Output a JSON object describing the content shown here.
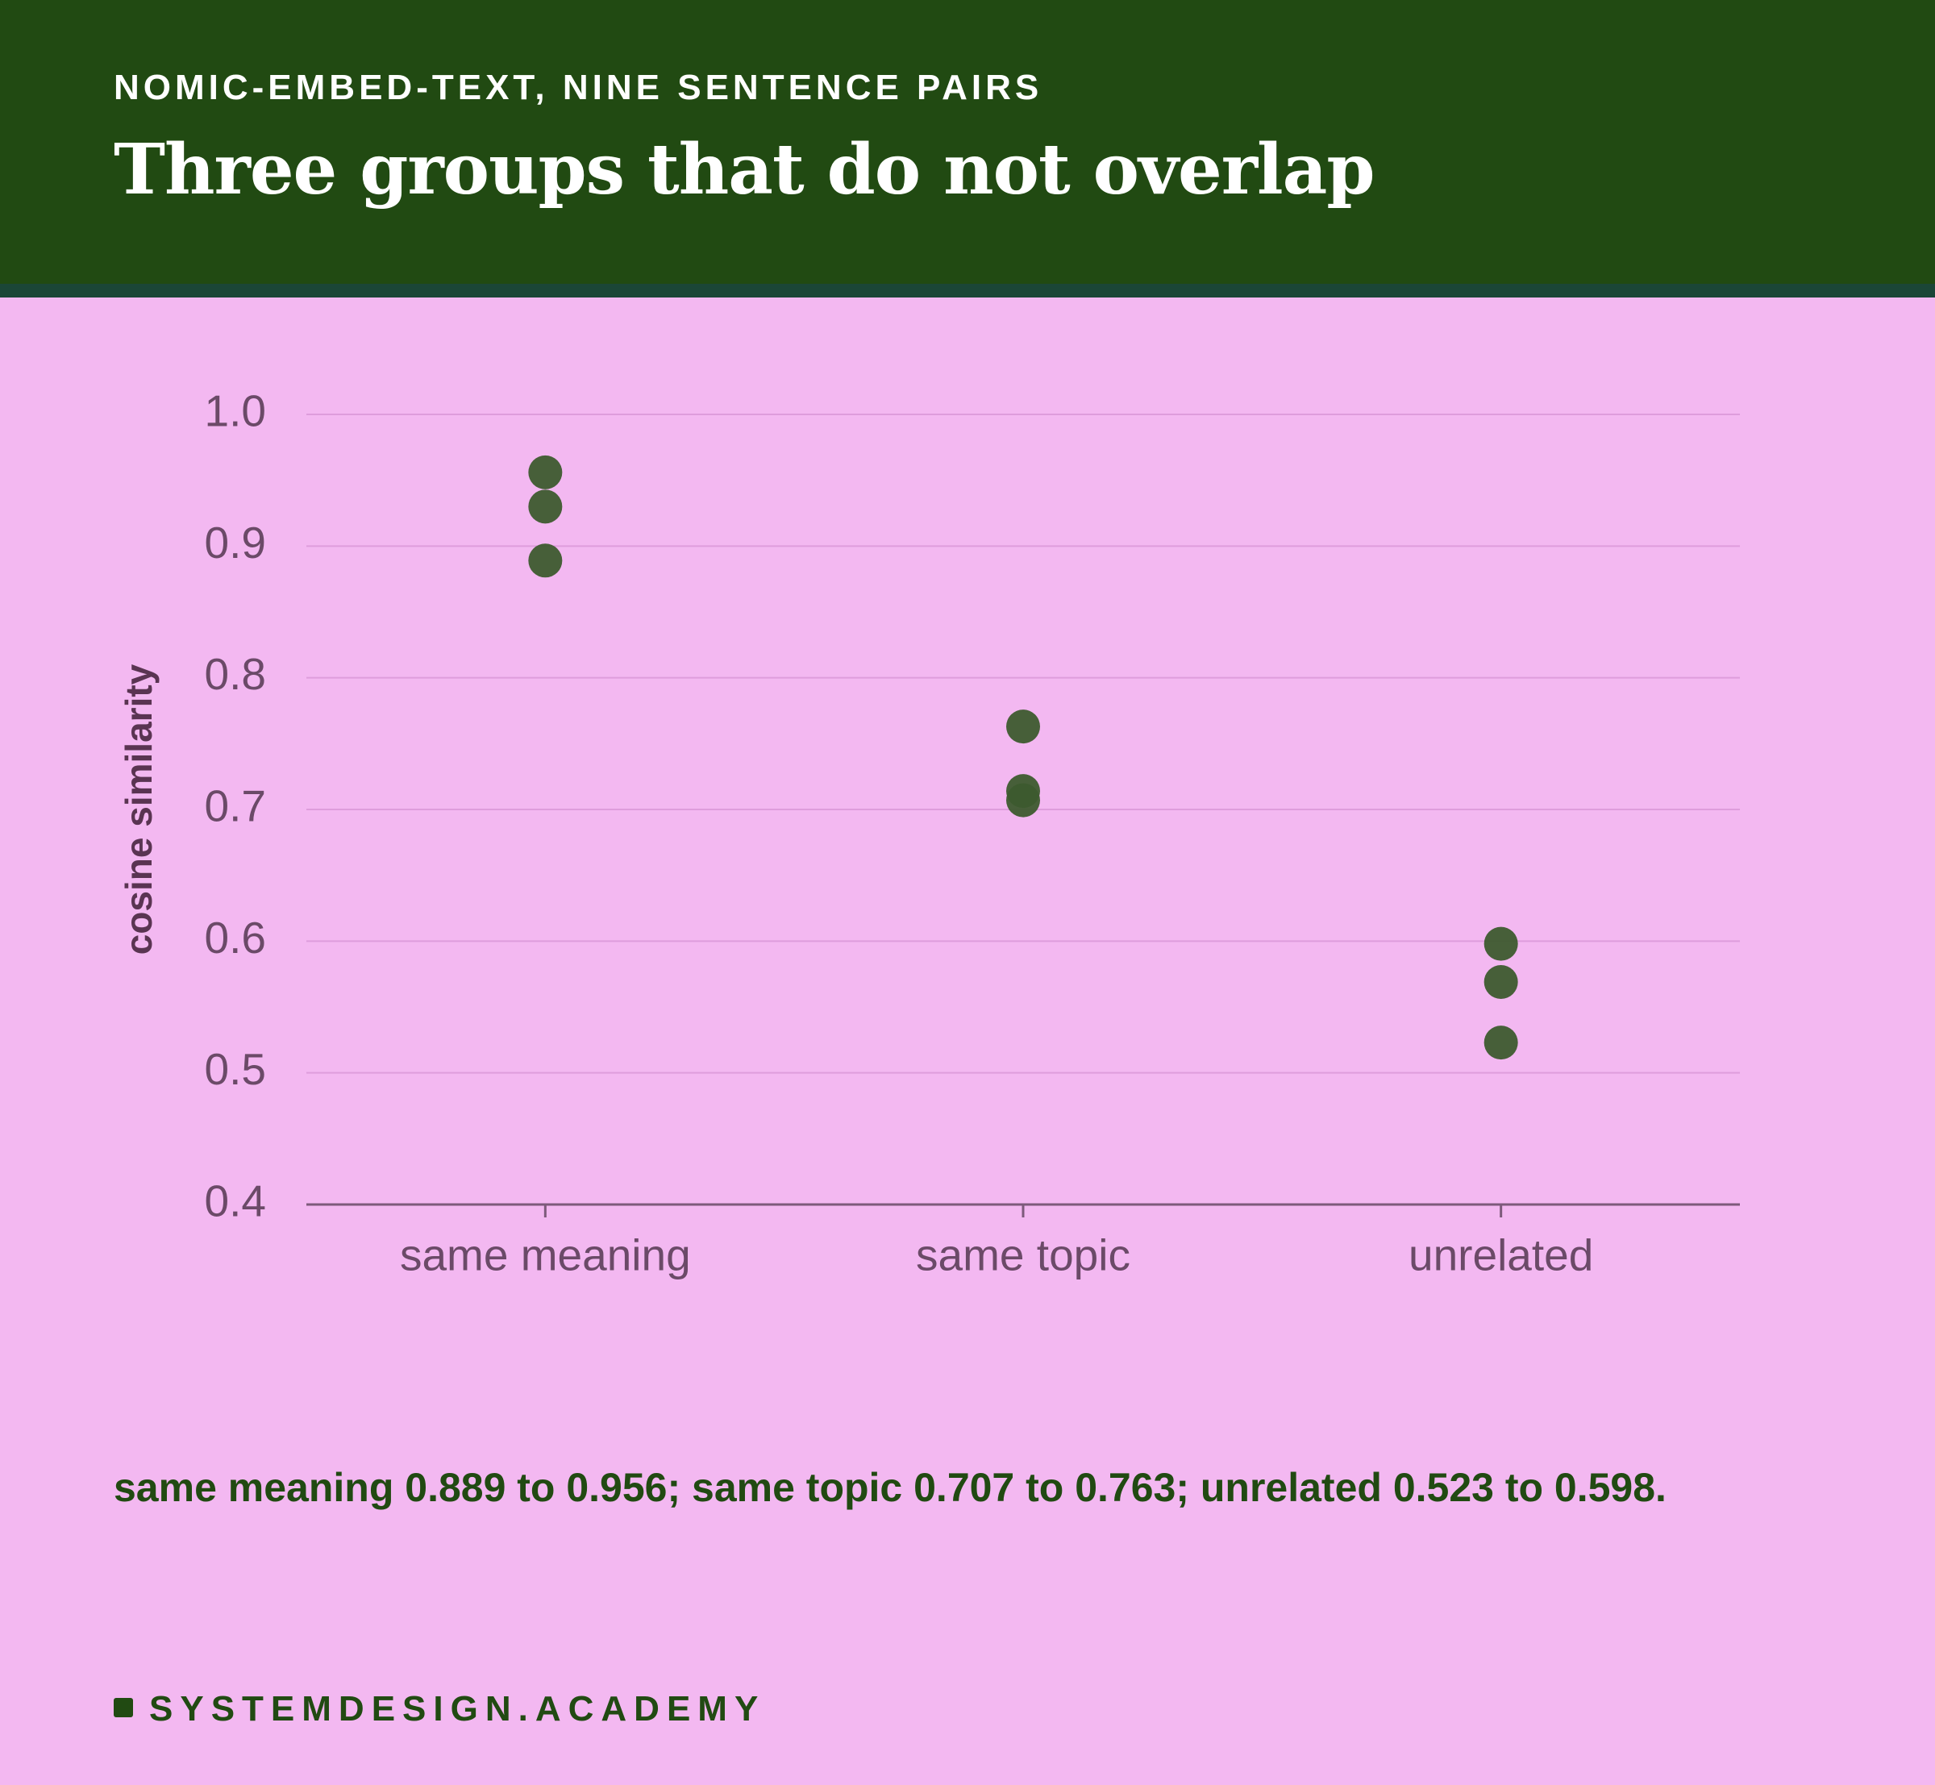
{
  "chart_data": {
    "type": "strip",
    "subtitle": "NOMIC-EMBED-TEXT, NINE SENTENCE PAIRS",
    "title": "Three groups that do not overlap",
    "ylabel": "cosine similarity",
    "categories": [
      "same meaning",
      "same topic",
      "unrelated"
    ],
    "values": [
      [
        0.956,
        0.93,
        0.889
      ],
      [
        0.763,
        0.714,
        0.707
      ],
      [
        0.598,
        0.569,
        0.523
      ]
    ],
    "color": "#3d5a2e",
    "ylim": [
      0.4,
      1.0
    ],
    "yticks": [
      0.4,
      0.5,
      0.6,
      0.7,
      0.8,
      0.9,
      {
        "value": 1.0,
        "label": "1.0"
      }
    ],
    "grid": true,
    "caption": "same meaning 0.889 to 0.956; same topic 0.707 to 0.763; unrelated 0.523 to 0.598.",
    "footer": "SYSTEMDESIGN.ACADEMY"
  }
}
